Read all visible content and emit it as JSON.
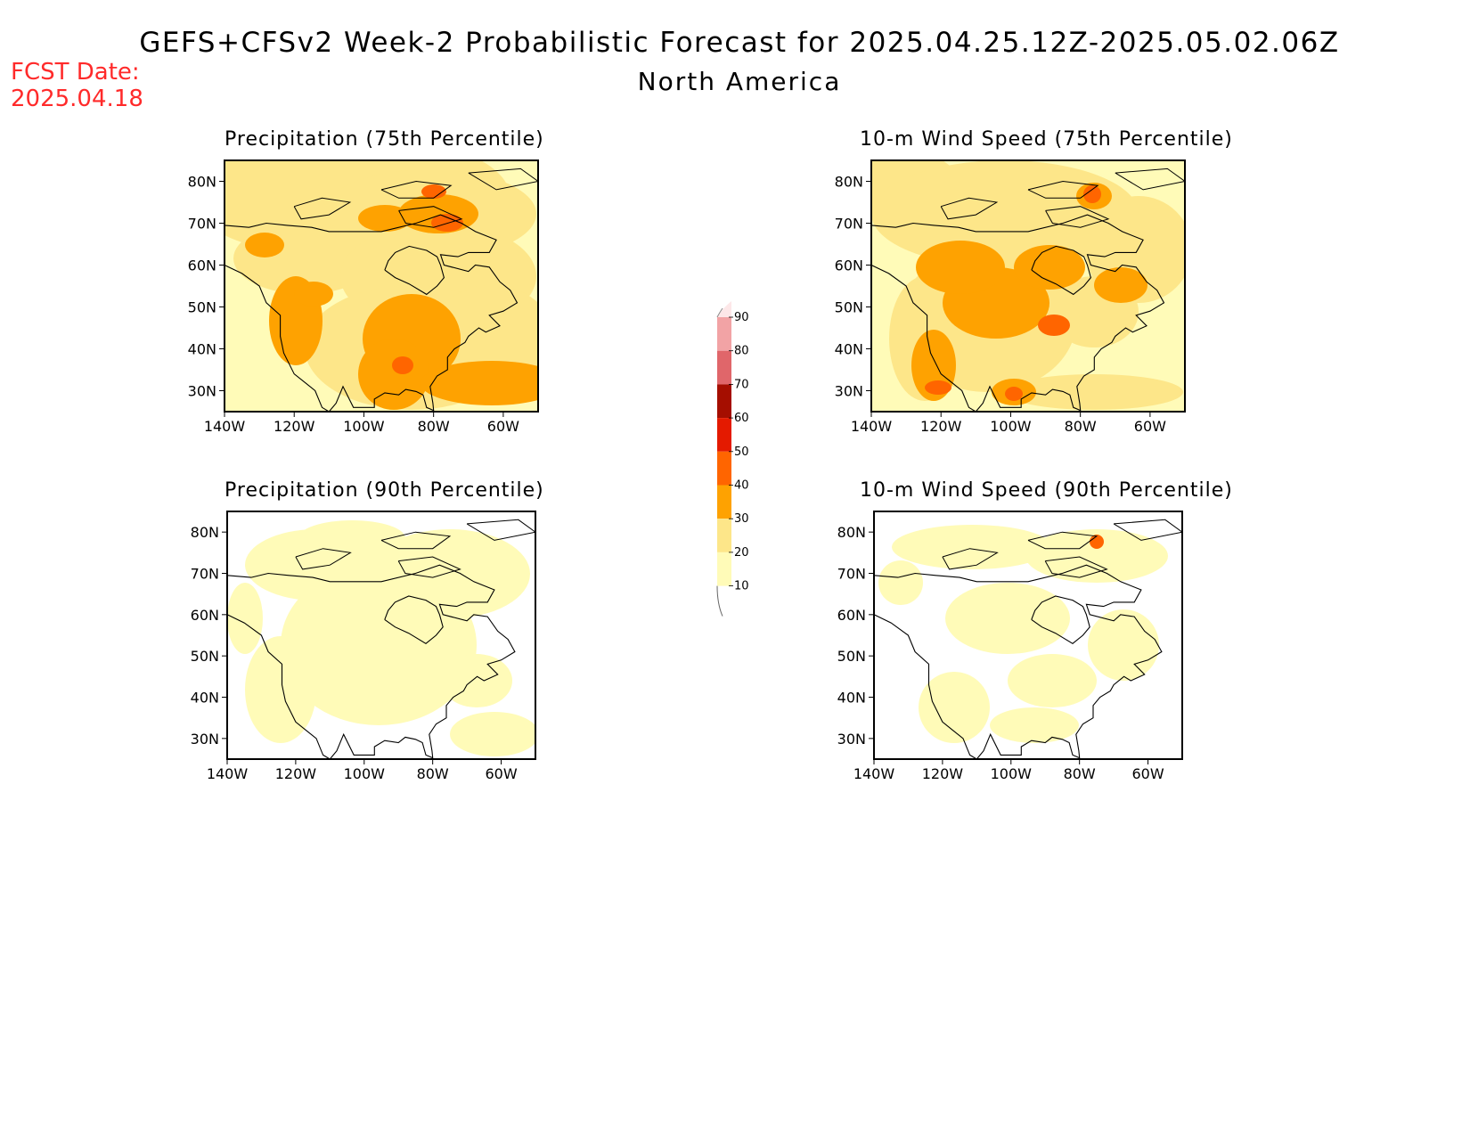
{
  "header": {
    "title": "GEFS+CFSv2 Week-2 Probabilistic Forecast for 2025.04.25.12Z-2025.05.02.06Z",
    "subtitle": "North America",
    "fcst_label": "FCST Date:",
    "fcst_date": "2025.04.18"
  },
  "panels": [
    {
      "id": "precip75",
      "title": "Precipitation (75th Percentile)",
      "field": "precipitation",
      "percentile": 75,
      "background_category": "10-20"
    },
    {
      "id": "wind75",
      "title": "10-m Wind Speed (75th Percentile)",
      "field": "wind",
      "percentile": 75,
      "background_category": "10-20"
    },
    {
      "id": "precip90",
      "title": "Precipitation (90th Percentile)",
      "field": "precipitation",
      "percentile": 90,
      "background_category": "<10"
    },
    {
      "id": "wind90",
      "title": "10-m Wind Speed (90th Percentile)",
      "field": "wind",
      "percentile": 90,
      "background_category": "<10"
    }
  ],
  "axes": {
    "lat_labels": [
      "80N",
      "70N",
      "60N",
      "50N",
      "40N",
      "30N"
    ],
    "lat_values": [
      80,
      70,
      60,
      50,
      40,
      30
    ],
    "lon_labels": [
      "140W",
      "120W",
      "100W",
      "80W",
      "60W"
    ],
    "lon_values": [
      -140,
      -120,
      -100,
      -80,
      -60
    ],
    "lat_range": [
      25,
      85
    ],
    "lon_range": [
      -140,
      -50
    ]
  },
  "colorbar": {
    "labels": [
      "10",
      "20",
      "30",
      "40",
      "50",
      "60",
      "70",
      "80",
      "90"
    ],
    "colors": [
      "#fffbb8",
      "#fde689",
      "#fea201",
      "#ff6500",
      "#e41a00",
      "#a50e00",
      "#e0666a",
      "#f2a3a5",
      "#fde7e8"
    ]
  }
}
